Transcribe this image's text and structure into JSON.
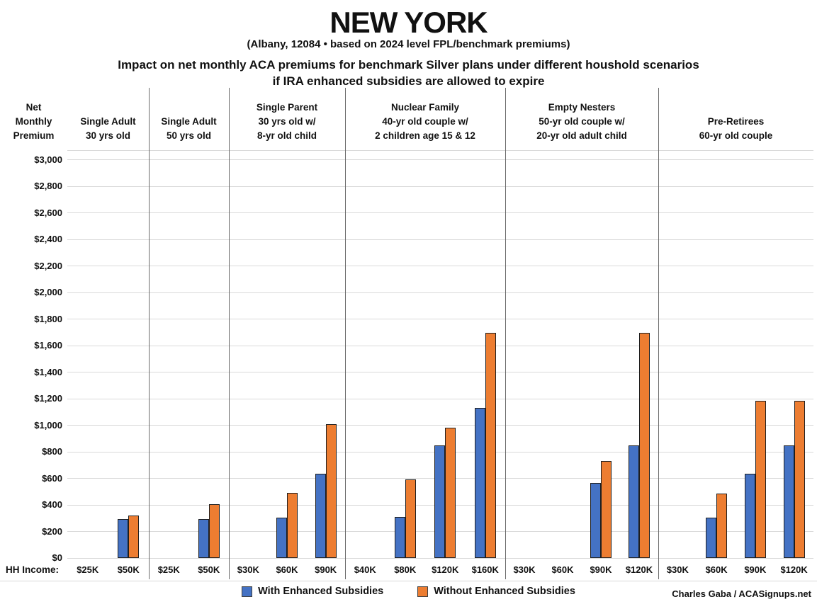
{
  "chart_data": {
    "type": "bar",
    "title": "NEW YORK",
    "subtitle": "(Albany, 12084 • based on 2024 level FPL/benchmark premiums)",
    "heading_line1": "Impact on net monthly ACA premiums for benchmark Silver plans under different houshold scenarios",
    "heading_line2": "if IRA enhanced subsidies are allowed to expire",
    "y_axis": {
      "label_lines": [
        "Net",
        "Monthly",
        "Premium"
      ],
      "min": 0,
      "max": 3000,
      "step": 200,
      "ticks": [
        "$0",
        "$200",
        "$400",
        "$600",
        "$800",
        "$1,000",
        "$1,200",
        "$1,400",
        "$1,600",
        "$1,800",
        "$2,000",
        "$2,200",
        "$2,400",
        "$2,600",
        "$2,800",
        "$3,000"
      ]
    },
    "series": [
      {
        "name": "With Enhanced Subsidies",
        "color": "#4472C4"
      },
      {
        "name": "Without Enhanced Subsidies",
        "color": "#ED7D31"
      }
    ],
    "hh_income_label": "HH Income:",
    "groups": [
      {
        "header_lines": [
          "Single Adult",
          "30 yrs old"
        ],
        "incomes": [
          "$25K",
          "$50K"
        ],
        "with_enhanced": [
          0,
          295
        ],
        "without_enhanced": [
          0,
          322
        ]
      },
      {
        "header_lines": [
          "Single Adult",
          "50 yrs old"
        ],
        "incomes": [
          "$25K",
          "$50K"
        ],
        "with_enhanced": [
          0,
          295
        ],
        "without_enhanced": [
          0,
          408
        ]
      },
      {
        "header_lines": [
          "Single Parent",
          "30 yrs old w/",
          "8-yr old child"
        ],
        "incomes": [
          "$30K",
          "$60K",
          "$90K"
        ],
        "with_enhanced": [
          0,
          305,
          635
        ],
        "without_enhanced": [
          0,
          490,
          1010
        ]
      },
      {
        "header_lines": [
          "Nuclear Family",
          "40-yr old couple w/",
          "2 children age 15 & 12"
        ],
        "incomes": [
          "$40K",
          "$80K",
          "$120K",
          "$160K"
        ],
        "with_enhanced": [
          0,
          310,
          848,
          1133
        ],
        "without_enhanced": [
          0,
          590,
          980,
          1695
        ]
      },
      {
        "header_lines": [
          "Empty Nesters",
          "50-yr old couple w/",
          "20-yr old adult child"
        ],
        "incomes": [
          "$30K",
          "$60K",
          "$90K",
          "$120K"
        ],
        "with_enhanced": [
          0,
          0,
          565,
          850
        ],
        "without_enhanced": [
          0,
          0,
          732,
          1695
        ]
      },
      {
        "header_lines": [
          "Pre-Retirees",
          "60-yr old couple"
        ],
        "incomes": [
          "$30K",
          "$60K",
          "$90K",
          "$120K"
        ],
        "with_enhanced": [
          0,
          305,
          635,
          848
        ],
        "without_enhanced": [
          0,
          487,
          1185,
          1185
        ]
      }
    ],
    "credit": "Charles Gaba / ACASignups.net"
  }
}
